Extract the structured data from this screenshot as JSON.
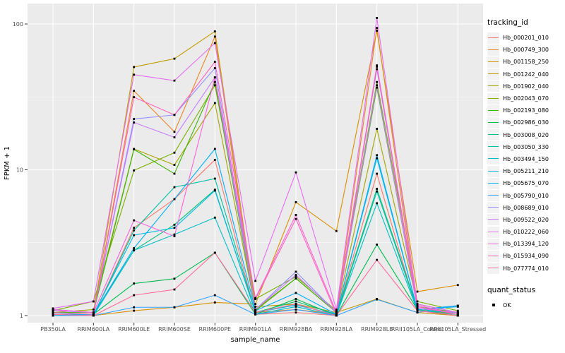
{
  "chart_data": {
    "type": "line",
    "title": "",
    "xlabel": "sample_name",
    "ylabel": "FPKM + 1",
    "y_scale": "log10",
    "y_ticks": [
      1,
      10,
      100
    ],
    "y_minor": [
      3.1623,
      31.623
    ],
    "ylim": [
      0.95,
      120
    ],
    "grid": true,
    "panel_bg": "#EBEBEB",
    "grid_color": "#FFFFFF",
    "point_shape": "black-square",
    "categories": [
      "PB350LA",
      "RRIM600LA",
      "RRIM600LE",
      "RRIM600SE",
      "RRIM600PE",
      "RRIM901LA",
      "RRIM928BA",
      "RRIM928LA",
      "RRIM928LE",
      "RRII105LA_Control",
      "RRII105LA_Stressed"
    ],
    "series": [
      {
        "name": "Hb_000201_010",
        "color": "#F8766D",
        "values": [
          1.02,
          1.0,
          4.0,
          6.3,
          11.7,
          1.02,
          1.05,
          1.0,
          9.4,
          1.05,
          1.0
        ]
      },
      {
        "name": "Hb_000749_300",
        "color": "#E88526",
        "values": [
          1.05,
          1.02,
          34.8,
          18.2,
          82.0,
          1.05,
          1.1,
          1.02,
          94.0,
          1.1,
          1.02
        ]
      },
      {
        "name": "Hb_001158_250",
        "color": "#D89000",
        "values": [
          1.0,
          1.0,
          1.08,
          1.14,
          1.23,
          1.2,
          6.0,
          3.8,
          90.0,
          1.46,
          1.62
        ]
      },
      {
        "name": "Hb_001242_040",
        "color": "#C09B00",
        "values": [
          1.1,
          1.05,
          50.7,
          57.8,
          89.0,
          1.15,
          1.2,
          1.05,
          1.3,
          1.05,
          1.0
        ]
      },
      {
        "name": "Hb_001902_040",
        "color": "#A3A500",
        "values": [
          1.05,
          1.1,
          13.9,
          10.8,
          28.7,
          1.1,
          1.8,
          1.05,
          19.1,
          1.2,
          1.05
        ]
      },
      {
        "name": "Hb_002043_070",
        "color": "#7CAE00",
        "values": [
          1.08,
          1.25,
          9.9,
          13.1,
          38.0,
          1.3,
          1.85,
          1.08,
          40.0,
          1.25,
          1.08
        ]
      },
      {
        "name": "Hb_002193_080",
        "color": "#39B600",
        "values": [
          1.05,
          1.05,
          13.8,
          9.4,
          40.0,
          1.08,
          1.8,
          1.05,
          36.6,
          1.15,
          1.05
        ]
      },
      {
        "name": "Hb_002986_030",
        "color": "#00BB4E",
        "values": [
          1.0,
          1.02,
          1.66,
          1.79,
          2.7,
          1.02,
          1.3,
          1.0,
          3.07,
          1.1,
          1.0
        ]
      },
      {
        "name": "Hb_003008_020",
        "color": "#00BF7D",
        "values": [
          1.02,
          1.02,
          2.8,
          4.2,
          7.3,
          1.05,
          1.25,
          1.02,
          7.4,
          1.12,
          1.02
        ]
      },
      {
        "name": "Hb_003050_330",
        "color": "#00C1A3",
        "values": [
          1.0,
          1.0,
          3.84,
          7.6,
          8.7,
          1.05,
          1.2,
          1.0,
          7.1,
          1.1,
          1.0
        ]
      },
      {
        "name": "Hb_003494_150",
        "color": "#00BFC4",
        "values": [
          1.02,
          1.0,
          2.8,
          3.6,
          4.7,
          1.02,
          1.15,
          1.0,
          5.9,
          1.08,
          1.05
        ]
      },
      {
        "name": "Hb_005211_210",
        "color": "#00BAE0",
        "values": [
          1.0,
          1.02,
          3.56,
          4.0,
          7.2,
          1.05,
          1.18,
          1.02,
          12.0,
          1.1,
          1.15
        ]
      },
      {
        "name": "Hb_005675_070",
        "color": "#00B0F6",
        "values": [
          1.02,
          1.02,
          2.9,
          6.3,
          13.9,
          1.08,
          1.43,
          1.02,
          12.6,
          1.1,
          1.17
        ]
      },
      {
        "name": "Hb_005790_010",
        "color": "#35A2FF",
        "values": [
          1.0,
          1.0,
          1.14,
          1.14,
          1.38,
          1.02,
          1.1,
          1.0,
          1.29,
          1.05,
          1.17
        ]
      },
      {
        "name": "Hb_008689_010",
        "color": "#9590FF",
        "values": [
          1.1,
          1.05,
          22.3,
          23.8,
          49.8,
          1.1,
          2.0,
          1.05,
          49.0,
          1.15,
          1.02
        ]
      },
      {
        "name": "Hb_009522_020",
        "color": "#C77CFF",
        "values": [
          1.08,
          1.05,
          21.1,
          16.7,
          43.0,
          1.1,
          1.9,
          1.05,
          38.0,
          1.12,
          1.05
        ]
      },
      {
        "name": "Hb_010222_060",
        "color": "#E76BF3",
        "values": [
          1.12,
          1.25,
          44.9,
          40.9,
          74.0,
          1.73,
          9.6,
          1.1,
          110.0,
          1.2,
          1.05
        ]
      },
      {
        "name": "Hb_013394_120",
        "color": "#FA62DB",
        "values": [
          1.1,
          1.05,
          4.5,
          3.5,
          43.0,
          1.32,
          4.9,
          1.05,
          52.0,
          1.18,
          1.02
        ]
      },
      {
        "name": "Hb_015934_090",
        "color": "#FF62BC",
        "values": [
          1.05,
          1.02,
          31.5,
          23.8,
          55.0,
          1.3,
          4.6,
          1.02,
          51.0,
          1.15,
          1.02
        ]
      },
      {
        "name": "Hb_077774_010",
        "color": "#FF6A98",
        "values": [
          1.02,
          1.0,
          1.38,
          1.51,
          2.7,
          1.05,
          1.2,
          1.0,
          2.41,
          1.08,
          1.0
        ]
      }
    ]
  },
  "legend": {
    "tracking_title": "tracking_id",
    "quant_title": "quant_status",
    "quant_items": [
      {
        "label": "OK",
        "marker": "black-square"
      }
    ]
  }
}
